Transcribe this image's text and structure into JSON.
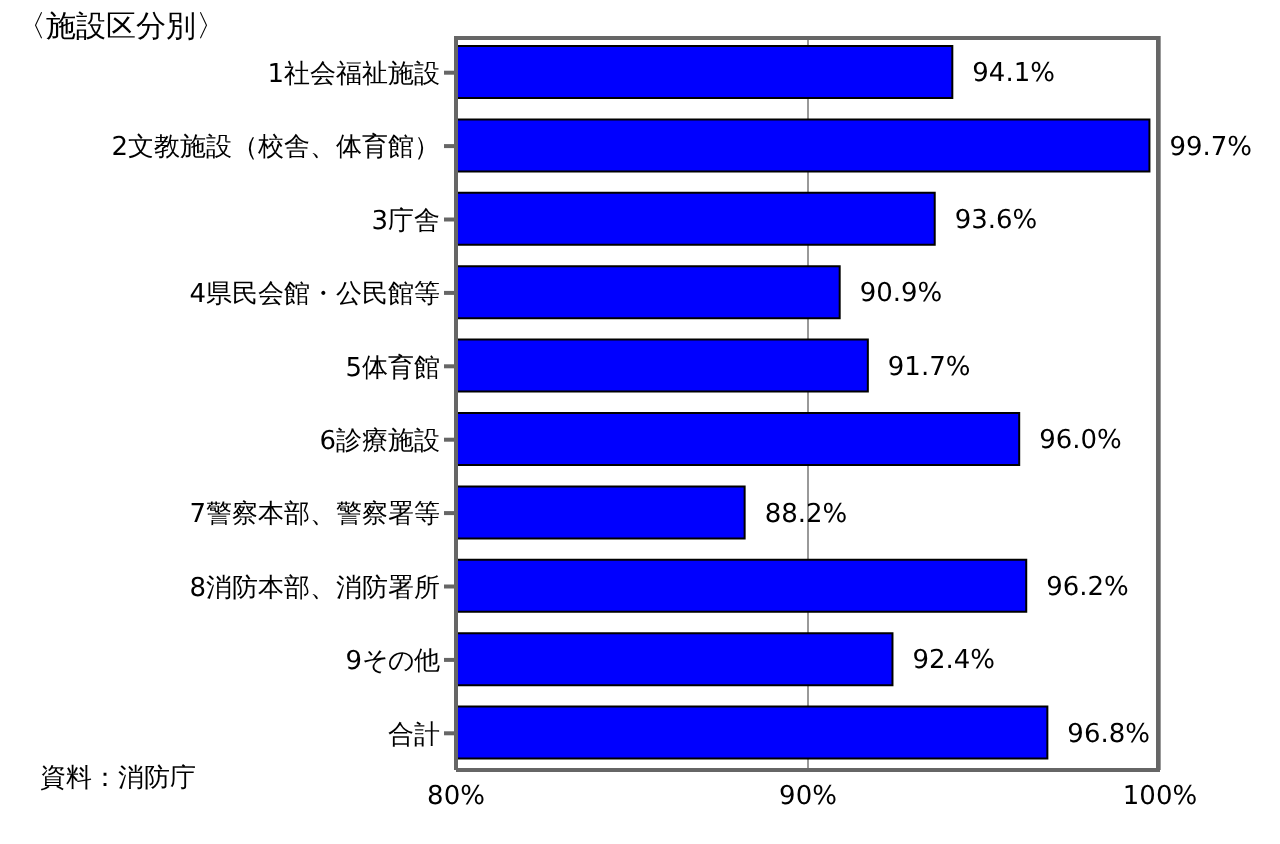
{
  "chart_data": {
    "type": "bar",
    "orientation": "horizontal",
    "title": "〈施設区分別〉",
    "categories": [
      "1社会福祉施設",
      "2文教施設（校舎、体育館）",
      "3庁舎",
      "4県民会館・公民館等",
      "5体育館",
      "6診療施設",
      "7警察本部、警察署等",
      "8消防本部、消防署所",
      "9その他",
      "合計"
    ],
    "values": [
      94.1,
      99.7,
      93.6,
      90.9,
      91.7,
      96.0,
      88.2,
      96.2,
      92.4,
      96.8
    ],
    "value_labels": [
      "94.1%",
      "99.7%",
      "93.6%",
      "90.9%",
      "91.7%",
      "96.0%",
      "88.2%",
      "96.2%",
      "92.4%",
      "96.8%"
    ],
    "color": "#0000ff",
    "xlim": [
      80,
      100
    ],
    "xticks": [
      {
        "value": 80,
        "label": "80%"
      },
      {
        "value": 90,
        "label": "90%"
      },
      {
        "value": 100,
        "label": "100%"
      }
    ],
    "grid": "x",
    "annotations": [
      "資料：消防庁"
    ]
  }
}
